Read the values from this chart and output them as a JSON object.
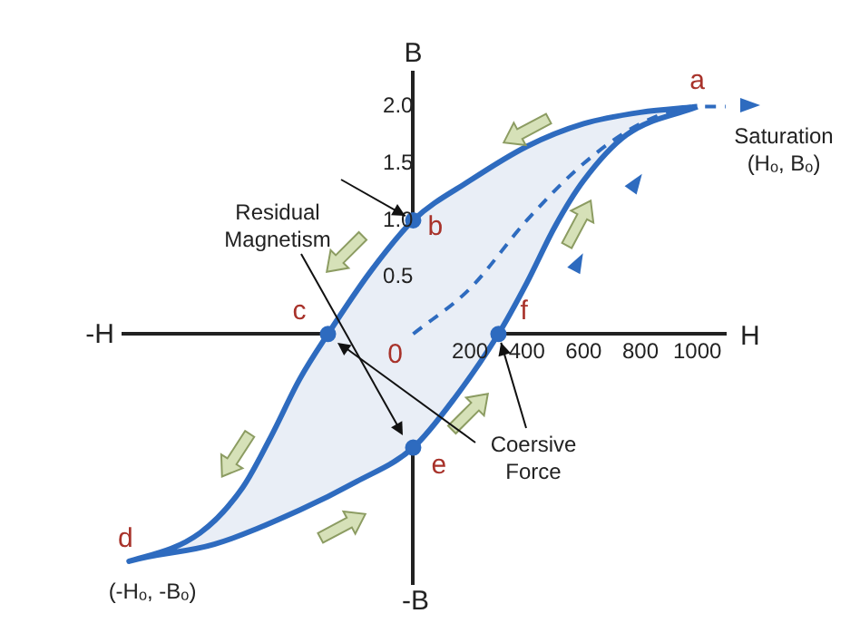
{
  "chart_data": {
    "type": "area",
    "xlabel": "H",
    "ylabel": "B",
    "xlim": [
      -1020,
      1100
    ],
    "ylim": [
      -2.2,
      2.3
    ],
    "xticks": [
      200,
      400,
      600,
      800,
      1000
    ],
    "yticks": [
      0.5,
      {
        "value": 1,
        "label": "1.0"
      },
      1.5,
      {
        "value": 2,
        "label": "2.0"
      }
    ],
    "grid": false,
    "legend": false,
    "series": [
      {
        "color": "#2e6bbf",
        "marker": "none",
        "x": [
          1000,
          800,
          600,
          400,
          200,
          0,
          -150,
          -300,
          -400,
          -500,
          -600,
          -750,
          -1000,
          -700,
          -400,
          -200,
          0,
          150,
          300,
          400,
          500,
          600,
          750,
          1000
        ],
        "values": [
          2.0,
          1.95,
          1.85,
          1.65,
          1.35,
          1.0,
          0.55,
          0,
          -0.4,
          -0.9,
          -1.35,
          -1.75,
          -2.0,
          -1.85,
          -1.55,
          -1.3,
          -1.0,
          -0.55,
          0,
          0.45,
          0.95,
          1.35,
          1.75,
          2.0
        ]
      },
      {
        "type": "line",
        "color": "#2e6bbf",
        "marker": "none",
        "line_style": "dashed",
        "x": [
          0,
          200,
          400,
          600,
          800,
          1000,
          1100
        ],
        "values": [
          0,
          0.4,
          1.0,
          1.5,
          1.85,
          2.0,
          2.0
        ]
      },
      {
        "type": "scatter",
        "color": "#2e6bbf",
        "marker": "circle",
        "x": [
          0,
          -300,
          0,
          300
        ],
        "values": [
          1.0,
          0,
          -1.0,
          0
        ]
      }
    ],
    "annotations": [
      {
        "text": "a",
        "x": 1000,
        "y": 2.0
      },
      {
        "text": "b",
        "x": 0,
        "y": 1.0
      },
      {
        "text": "c",
        "x": -300,
        "y": 0
      },
      {
        "text": "d",
        "x": -1000,
        "y": -2.0
      },
      {
        "text": "e",
        "x": 0,
        "y": -1.0
      },
      {
        "text": "f",
        "x": 300,
        "y": 0
      },
      {
        "text": "0",
        "x": 0,
        "y": 0
      },
      {
        "text": "Residual Magnetism",
        "x": 0,
        "y": 1.0
      },
      {
        "text": "Coersive Force",
        "x": 300,
        "y": 0
      },
      "Saturation",
      "(Hₒ, Bₒ)",
      "(-Hₒ, -Bₒ)",
      "-H",
      "-B"
    ]
  }
}
